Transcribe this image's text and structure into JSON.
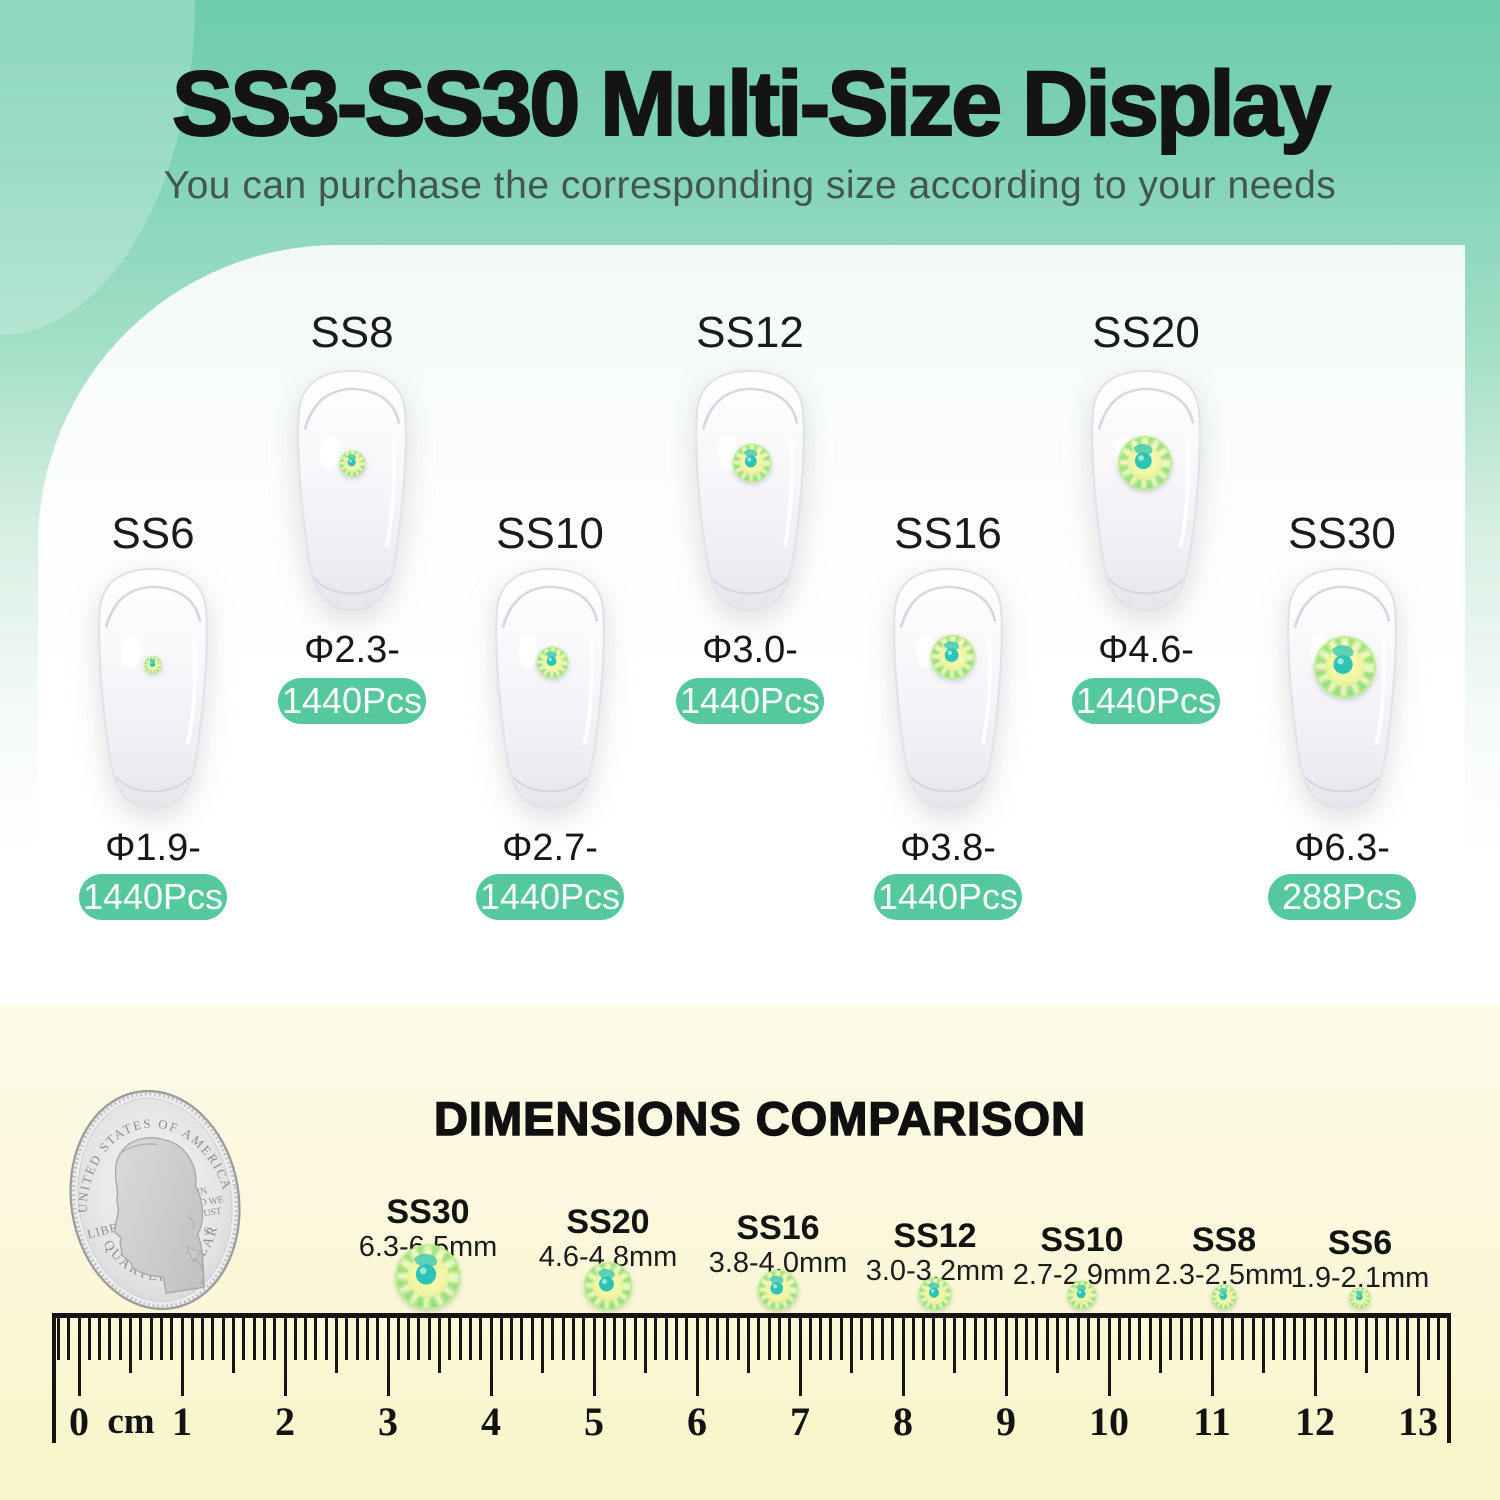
{
  "header": {
    "title": "SS3-SS30 Multi-Size Display",
    "subtitle": "You can purchase the corresponding size according to your needs"
  },
  "sizes": [
    {
      "name": "SS6",
      "diameter": "Φ1.9-2.1mm",
      "qty": "1440Pcs"
    },
    {
      "name": "SS8",
      "diameter": "Φ2.3-2.5mm",
      "qty": "1440Pcs"
    },
    {
      "name": "SS10",
      "diameter": "Φ2.7-2.9mm",
      "qty": "1440Pcs"
    },
    {
      "name": "SS12",
      "diameter": "Φ3.0-3.2mm",
      "qty": "1440Pcs"
    },
    {
      "name": "SS16",
      "diameter": "Φ3.8-4.0mm",
      "qty": "1440Pcs"
    },
    {
      "name": "SS20",
      "diameter": "Φ4.6-4.8mm",
      "qty": "1440Pcs"
    },
    {
      "name": "SS30",
      "diameter": "Φ6.3-6.5mm",
      "qty": "288Pcs"
    }
  ],
  "comparison": {
    "heading": "DIMENSIONS COMPARISON",
    "items": [
      {
        "name": "SS30",
        "size": "6.3-6.5mm"
      },
      {
        "name": "SS20",
        "size": "4.6-4.8mm"
      },
      {
        "name": "SS16",
        "size": "3.8-4.0mm"
      },
      {
        "name": "SS12",
        "size": "3.0-3.2mm"
      },
      {
        "name": "SS10",
        "size": "2.7-2.9mm"
      },
      {
        "name": "SS8",
        "size": "2.3-2.5mm"
      },
      {
        "name": "SS6",
        "size": "1.9-2.1mm"
      }
    ],
    "coin": {
      "top_text": "UNITED STATES OF AMERICA",
      "left_text": "LIBERTY",
      "motto_lines": [
        "IN",
        "GOD WE",
        "TRUST"
      ],
      "mint_mark": "S",
      "bottom_text": "QUARTER DOLLAR"
    }
  },
  "ruler": {
    "unit": "cm",
    "labels": [
      "0",
      "1",
      "2",
      "3",
      "4",
      "5",
      "6",
      "7",
      "8",
      "9",
      "10",
      "11",
      "12",
      "13"
    ]
  },
  "colors": {
    "accent_green": "#55c99d",
    "background_green": "#6fcdab",
    "section_yellow": "#fbf8d9",
    "text_black": "#141414"
  }
}
